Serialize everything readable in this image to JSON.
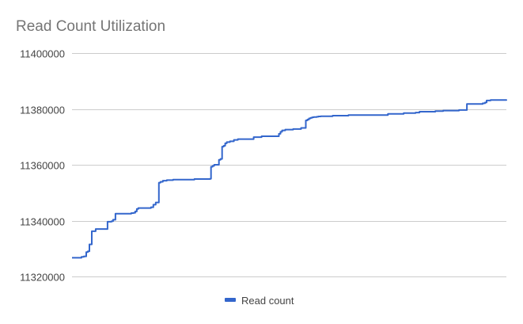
{
  "chart_data": {
    "type": "line",
    "title": "Read Count Utilization",
    "xlabel": "",
    "ylabel": "",
    "ylim": [
      11320000,
      11400000
    ],
    "yticks": [
      11320000,
      11340000,
      11360000,
      11380000,
      11400000
    ],
    "ytick_labels": [
      "11320000",
      "11340000",
      "11360000",
      "11380000",
      "11400000"
    ],
    "grid": true,
    "legend_position": "bottom",
    "series": [
      {
        "name": "Read count",
        "color": "#3366cc",
        "x": [
          0,
          12,
          15,
          18,
          20,
          22,
          25,
          30,
          45,
          50,
          52,
          55,
          75,
          78,
          80,
          82,
          84,
          100,
          103,
          106,
          110,
          112,
          115,
          120,
          128,
          155,
          175,
          176,
          178,
          180,
          186,
          188,
          190,
          192,
          194,
          196,
          200,
          205,
          210,
          230,
          240,
          262,
          264,
          266,
          270,
          280,
          290,
          296,
          298,
          300,
          302,
          304,
          306,
          310,
          312,
          315,
          330,
          350,
          400,
          420,
          435,
          440,
          460,
          470,
          490,
          500,
          520,
          523,
          525,
          530,
          550
        ],
        "y": [
          11326700,
          11327000,
          11327200,
          11328700,
          11329000,
          11331500,
          11336200,
          11337000,
          11339600,
          11339800,
          11340300,
          11342500,
          11342700,
          11342800,
          11343300,
          11344200,
          11344500,
          11344800,
          11345700,
          11346500,
          11353600,
          11353900,
          11354300,
          11354500,
          11354700,
          11354900,
          11355000,
          11359300,
          11359600,
          11360000,
          11361800,
          11362100,
          11366500,
          11366800,
          11367700,
          11368100,
          11368400,
          11368900,
          11369200,
          11369900,
          11370200,
          11371100,
          11371800,
          11372300,
          11372600,
          11372800,
          11373200,
          11375900,
          11376200,
          11376600,
          11376800,
          11377000,
          11377100,
          11377200,
          11377300,
          11377400,
          11377600,
          11377800,
          11378200,
          11378500,
          11378700,
          11379000,
          11379200,
          11379400,
          11379600,
          11381800,
          11382000,
          11382300,
          11383000,
          11383200,
          11383400
        ]
      }
    ]
  }
}
